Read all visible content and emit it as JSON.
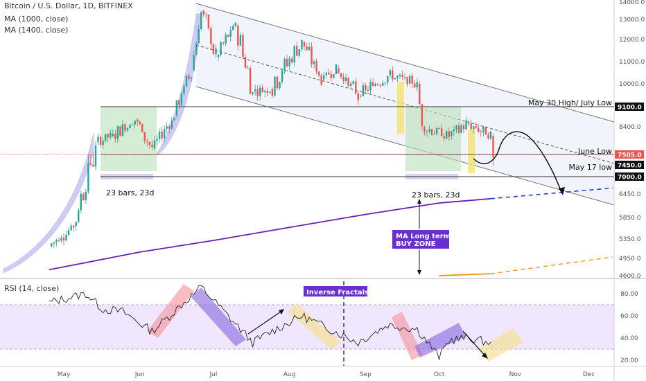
{
  "header": {
    "symbol": "Bitcoin / U.S. Dollar, 1D, BITFINEX",
    "ma1": "MA (1000, close)",
    "ma2": "MA (1400, close)",
    "rsi": "RSI (14, close)"
  },
  "colors": {
    "up": "#26a69a",
    "down": "#ef5350",
    "ma": "#6a1fb0",
    "ma_future": "#1f3fd8",
    "ma_orange": "#f0900c",
    "rsi_band": "#e6d6fb",
    "label_bg": "#6a2fcf"
  },
  "chart_data": [
    {
      "type": "line",
      "title": "Bitcoin / U.S. Dollar, 1D, BITFINEX",
      "y_axis_ticks": [
        14000,
        13000,
        12000,
        11000,
        10000,
        9100,
        8400,
        7505,
        7450,
        7000,
        6450,
        5850,
        5350,
        4950,
        4600
      ],
      "y_axis_tick_labels": [
        "14000.0",
        "13000.0",
        "12000.0",
        "11000.0",
        "10000.0",
        "9100.0",
        "8400.0",
        "7505.0",
        "7450.0",
        "7000.0",
        "6450.0",
        "5850.0",
        "5350.0",
        "4950.0",
        "4600.0"
      ],
      "x_axis_labels": [
        "May",
        "Jun",
        "Jul",
        "Aug",
        "Sep",
        "Oct",
        "Nov",
        "Dec"
      ],
      "series": [
        {
          "name": "BTCUSD",
          "x": [
            "2019-04-25",
            "2019-05-05",
            "2019-05-14",
            "2019-05-20",
            "2019-05-30",
            "2019-06-06",
            "2019-06-15",
            "2019-06-22",
            "2019-06-26",
            "2019-07-02",
            "2019-07-10",
            "2019-07-17",
            "2019-07-24",
            "2019-08-06",
            "2019-08-14",
            "2019-08-20",
            "2019-08-29",
            "2019-09-10",
            "2019-09-22",
            "2019-09-24",
            "2019-10-05",
            "2019-10-12",
            "2019-10-22",
            "2019-10-23"
          ],
          "values": [
            5200,
            5650,
            7900,
            8100,
            8650,
            7700,
            8800,
            10600,
            13500,
            11200,
            12700,
            9700,
            9800,
            11900,
            10200,
            10700,
            9500,
            10400,
            10000,
            8400,
            8100,
            8500,
            8100,
            7500
          ]
        },
        {
          "name": "MA (1000, close)",
          "x": [
            "2019-04-25",
            "2019-06-01",
            "2019-07-01",
            "2019-08-01",
            "2019-09-01",
            "2019-10-01",
            "2019-10-22"
          ],
          "values": [
            4720,
            5080,
            5320,
            5620,
            5930,
            6220,
            6330
          ]
        },
        {
          "name": "MA (1400, close)",
          "x": [
            "2019-10-01",
            "2019-10-22"
          ],
          "values": [
            4600,
            4640
          ]
        }
      ],
      "levels": [
        {
          "label": "May 30 High/ July Low",
          "value": 9100
        },
        {
          "label": "June Low",
          "value": 7505
        },
        {
          "label": "May 17 low",
          "value": 7000
        }
      ],
      "annotations": [
        "23 bars, 23d",
        "23 bars, 23d",
        "MA Long term",
        "BUY ZONE"
      ]
    },
    {
      "type": "line",
      "title": "RSI (14, close)",
      "y_axis_ticks": [
        80,
        60,
        40,
        20
      ],
      "y_axis_tick_labels": [
        "80.00",
        "60.00",
        "40.00",
        "20.00"
      ],
      "band": [
        30,
        70
      ],
      "series": [
        {
          "name": "RSI",
          "x": [
            "2019-04-25",
            "2019-05-10",
            "2019-05-17",
            "2019-05-25",
            "2019-06-06",
            "2019-06-26",
            "2019-07-17",
            "2019-07-24",
            "2019-08-06",
            "2019-08-29",
            "2019-09-10",
            "2019-09-22",
            "2019-10-01",
            "2019-10-05",
            "2019-10-12",
            "2019-10-22"
          ],
          "values": [
            72,
            80,
            66,
            64,
            46,
            86,
            36,
            45,
            60,
            36,
            52,
            48,
            23,
            38,
            40,
            36
          ]
        }
      ],
      "annotations": [
        "Inverse Fractals"
      ]
    }
  ]
}
